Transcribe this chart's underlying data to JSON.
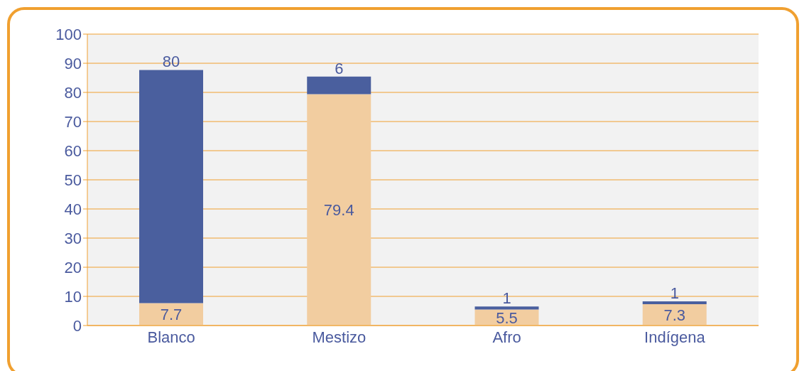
{
  "chart_data": {
    "type": "bar",
    "stacked": true,
    "categories": [
      "Blanco",
      "Mestizo",
      "Afro",
      "Indígena"
    ],
    "series": [
      {
        "color": "#f2cda0",
        "values": [
          7.7,
          79.4,
          5.5,
          7.3
        ]
      },
      {
        "color": "#4a5f9e",
        "values": [
          80,
          6,
          1,
          1
        ]
      }
    ],
    "ylim": [
      0,
      100
    ],
    "yticks": [
      0,
      10,
      20,
      30,
      40,
      50,
      60,
      70,
      80,
      90,
      100
    ],
    "grid": "y",
    "data_labels": true
  }
}
